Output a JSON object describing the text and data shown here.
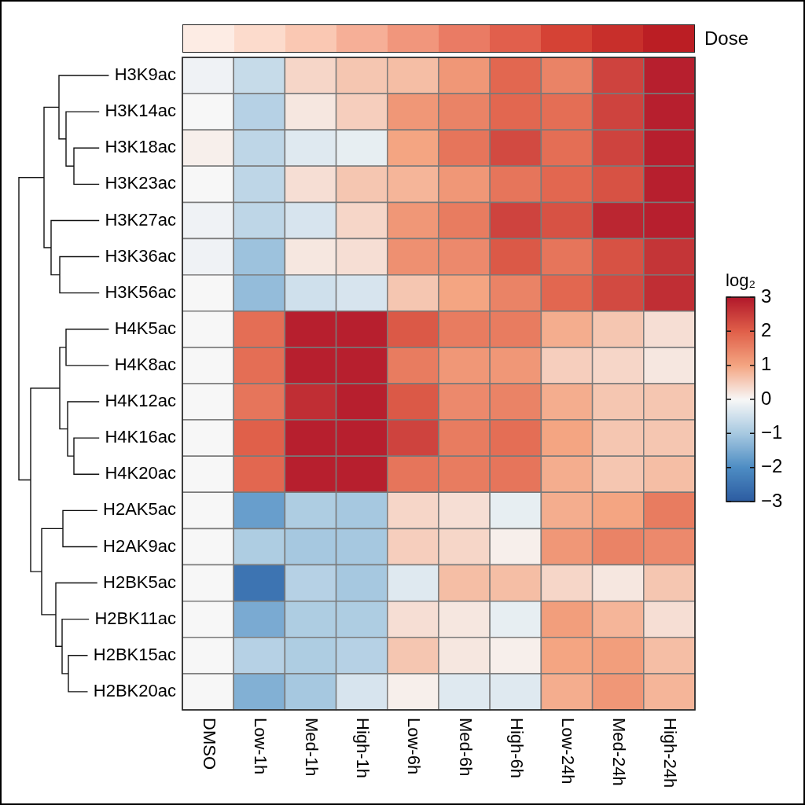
{
  "chart_data": {
    "type": "heatmap",
    "categories": [
      "DMSO",
      "Low-1h",
      "Med-1h",
      "High-1h",
      "Low-6h",
      "Med-6h",
      "High-6h",
      "Low-24h",
      "Med-24h",
      "High-24h"
    ],
    "y_categories": [
      "H3K9ac",
      "H3K14ac",
      "H3K18ac",
      "H3K23ac",
      "H3K27ac",
      "H3K36ac",
      "H3K56ac",
      "H4K5ac",
      "H4K8ac",
      "H4K12ac",
      "H4K16ac",
      "H4K20ac",
      "H2AK5ac",
      "H2AK9ac",
      "H2BK5ac",
      "H2BK11ac",
      "H2BK15ac",
      "H2BK20ac"
    ],
    "cells": [
      [
        -0.1,
        -0.6,
        0.4,
        0.6,
        0.7,
        1.2,
        1.9,
        1.5,
        2.4,
        2.9
      ],
      [
        0,
        -0.8,
        0.2,
        0.5,
        1.2,
        1.5,
        1.9,
        1.8,
        2.4,
        2.9
      ],
      [
        0.1,
        -0.7,
        -0.3,
        -0.2,
        1.0,
        1.7,
        2.3,
        1.8,
        2.4,
        2.9
      ],
      [
        0,
        -0.7,
        0.3,
        0.6,
        0.8,
        1.2,
        1.7,
        1.9,
        2.2,
        2.9
      ],
      [
        -0.1,
        -0.7,
        -0.4,
        0.4,
        1.2,
        1.6,
        2.4,
        2.2,
        2.8,
        2.9
      ],
      [
        -0.1,
        -1.1,
        0.2,
        0.3,
        1.3,
        1.4,
        2.1,
        1.7,
        2.2,
        2.6
      ],
      [
        0,
        -1.2,
        -0.5,
        -0.4,
        0.6,
        1.0,
        1.5,
        1.9,
        2.3,
        2.7
      ],
      [
        0,
        1.8,
        2.9,
        2.9,
        2.1,
        1.6,
        1.6,
        0.9,
        0.6,
        0.3
      ],
      [
        0,
        1.8,
        2.9,
        2.9,
        1.6,
        1.2,
        1.2,
        0.5,
        0.4,
        0.2
      ],
      [
        0,
        1.7,
        2.7,
        2.9,
        2.1,
        1.4,
        1.5,
        0.9,
        0.6,
        0.6
      ],
      [
        0,
        2.0,
        2.9,
        2.9,
        2.4,
        1.6,
        1.8,
        1.0,
        0.6,
        0.6
      ],
      [
        0,
        1.9,
        2.9,
        2.9,
        1.7,
        1.6,
        1.7,
        0.9,
        0.6,
        0.7
      ],
      [
        0,
        -1.7,
        -0.9,
        -1.0,
        0.4,
        0.3,
        -0.2,
        0.9,
        1.0,
        1.6
      ],
      [
        0,
        -0.9,
        -1.0,
        -1.0,
        0.5,
        0.4,
        0.1,
        1.2,
        1.5,
        1.4
      ],
      [
        0,
        -2.5,
        -0.8,
        -1.0,
        -0.3,
        0.7,
        0.7,
        0.4,
        0.2,
        0.6
      ],
      [
        0,
        -1.5,
        -0.9,
        -0.9,
        0.3,
        0.2,
        -0.2,
        1.1,
        0.8,
        0.3
      ],
      [
        0,
        -0.8,
        -0.9,
        -0.8,
        0.6,
        0.2,
        0.1,
        1.0,
        1.1,
        0.7
      ],
      [
        0,
        -1.4,
        -1.0,
        -0.4,
        0.1,
        -0.3,
        -0.3,
        0.9,
        1.2,
        0.8
      ]
    ],
    "clim": [
      -3,
      3
    ],
    "cticks": [
      {
        "value": -3,
        "label": "−3"
      },
      {
        "value": -2,
        "label": "−2"
      },
      {
        "value": -1,
        "label": "−1"
      },
      0,
      1,
      2,
      3
    ],
    "clabel": "log₂",
    "annotations": [
      "Dose"
    ]
  }
}
